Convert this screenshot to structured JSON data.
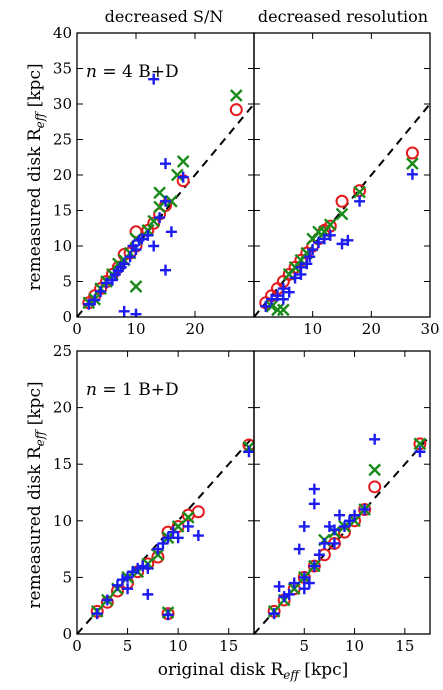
{
  "figure": {
    "column_titles": [
      "decreased S/N",
      "decreased resolution"
    ],
    "ylabel": "remeasured disk R",
    "ylabel_sub": "eff",
    "ylabel_unit": " [kpc]",
    "xlabel": "original disk R",
    "xlabel_sub": "eff",
    "xlabel_unit": " [kpc]"
  },
  "colors": {
    "circle": "#e41a1c",
    "cross": "#1a8a1a",
    "plus": "#1c1cf0",
    "ref_line": "#000000"
  },
  "chart_data": [
    {
      "type": "scatter",
      "row": 0,
      "col": 0,
      "panel_label": "n = 4 B+D",
      "xlim": [
        0,
        30
      ],
      "ylim": [
        0,
        40
      ],
      "xticks": [
        0,
        10,
        20
      ],
      "yticks": [
        0,
        5,
        10,
        15,
        20,
        25,
        30,
        35,
        40
      ],
      "reference_line": "y = x",
      "series": [
        {
          "marker": "circle",
          "points": [
            [
              2,
              2
            ],
            [
              3,
              3
            ],
            [
              4,
              4
            ],
            [
              5,
              5
            ],
            [
              6,
              6
            ],
            [
              7,
              7
            ],
            [
              8,
              8.8
            ],
            [
              9,
              9
            ],
            [
              10,
              10
            ],
            [
              10,
              12
            ],
            [
              12,
              12.2
            ],
            [
              13,
              13.2
            ],
            [
              14,
              14.5
            ],
            [
              15,
              15.7
            ],
            [
              18,
              19.2
            ],
            [
              27,
              29.2
            ]
          ]
        },
        {
          "marker": "cross",
          "points": [
            [
              2,
              2
            ],
            [
              3,
              2.5
            ],
            [
              4,
              4
            ],
            [
              5,
              5
            ],
            [
              6,
              6
            ],
            [
              7,
              7.5
            ],
            [
              8,
              8
            ],
            [
              9,
              9
            ],
            [
              10,
              11
            ],
            [
              10,
              4.3
            ],
            [
              12,
              12.2
            ],
            [
              13,
              13.5
            ],
            [
              14,
              15.5
            ],
            [
              14,
              17.5
            ],
            [
              16,
              16.3
            ],
            [
              17,
              20
            ],
            [
              18,
              21.9
            ],
            [
              27,
              31.2
            ]
          ]
        },
        {
          "marker": "plus",
          "points": [
            [
              2,
              1.8
            ],
            [
              3,
              2.4
            ],
            [
              4,
              3.6
            ],
            [
              5,
              4.8
            ],
            [
              6,
              5.2
            ],
            [
              6.5,
              6
            ],
            [
              7,
              6.5
            ],
            [
              7.5,
              7
            ],
            [
              8,
              0.8
            ],
            [
              8,
              7.5
            ],
            [
              9,
              8.5
            ],
            [
              9.5,
              10
            ],
            [
              10,
              0.4
            ],
            [
              10,
              9.5
            ],
            [
              10.5,
              10.8
            ],
            [
              11,
              11
            ],
            [
              12,
              11.5
            ],
            [
              13,
              33.5
            ],
            [
              13,
              10
            ],
            [
              14,
              14
            ],
            [
              15,
              21.6
            ],
            [
              15,
              16.3
            ],
            [
              15,
              6.6
            ],
            [
              16,
              12
            ],
            [
              18,
              19.7
            ]
          ]
        }
      ]
    },
    {
      "type": "scatter",
      "row": 0,
      "col": 1,
      "panel_label": "",
      "xlim": [
        0,
        30
      ],
      "ylim": [
        0,
        40
      ],
      "xticks": [
        10,
        20,
        30
      ],
      "yticks": [
        0,
        5,
        10,
        15,
        20,
        25,
        30,
        35,
        40
      ],
      "reference_line": "y = x",
      "series": [
        {
          "marker": "circle",
          "points": [
            [
              2,
              2
            ],
            [
              3,
              3
            ],
            [
              4,
              4
            ],
            [
              5,
              5
            ],
            [
              6,
              6
            ],
            [
              7,
              7
            ],
            [
              8,
              8
            ],
            [
              9,
              9
            ],
            [
              10,
              10
            ],
            [
              11,
              11
            ],
            [
              12,
              12.2
            ],
            [
              13,
              12.8
            ],
            [
              15,
              16.3
            ],
            [
              18,
              17.8
            ],
            [
              27,
              23.1
            ]
          ]
        },
        {
          "marker": "cross",
          "points": [
            [
              3,
              1.5
            ],
            [
              4,
              1
            ],
            [
              5,
              1
            ],
            [
              6,
              6
            ],
            [
              7,
              7
            ],
            [
              8,
              8
            ],
            [
              9,
              9
            ],
            [
              10,
              11
            ],
            [
              11,
              12
            ],
            [
              12,
              12
            ],
            [
              13,
              13
            ],
            [
              15,
              14.5
            ],
            [
              18,
              17.6
            ],
            [
              27,
              21.6
            ]
          ]
        },
        {
          "marker": "plus",
          "points": [
            [
              2,
              1.5
            ],
            [
              3,
              2.5
            ],
            [
              4,
              3
            ],
            [
              5,
              2.5
            ],
            [
              5,
              4
            ],
            [
              6,
              3.5
            ],
            [
              7,
              5.5
            ],
            [
              8,
              6
            ],
            [
              8,
              7
            ],
            [
              9,
              7.5
            ],
            [
              9.5,
              8.5
            ],
            [
              10,
              9.5
            ],
            [
              11,
              10.5
            ],
            [
              12,
              11
            ],
            [
              13,
              11.5
            ],
            [
              15,
              10.3
            ],
            [
              16,
              10.8
            ],
            [
              18,
              16.3
            ],
            [
              27,
              20.1
            ]
          ]
        }
      ]
    },
    {
      "type": "scatter",
      "row": 1,
      "col": 0,
      "panel_label": "n = 1 B+D",
      "xlim": [
        0,
        17.5
      ],
      "ylim": [
        0,
        25
      ],
      "xticks": [
        0,
        5,
        10,
        15
      ],
      "yticks": [
        0,
        5,
        10,
        15,
        20,
        25
      ],
      "reference_line": "y = x",
      "series": [
        {
          "marker": "circle",
          "points": [
            [
              2,
              2
            ],
            [
              3,
              2.8
            ],
            [
              4,
              3.8
            ],
            [
              5,
              4.5
            ],
            [
              6,
              5.5
            ],
            [
              7,
              6.2
            ],
            [
              8,
              6.8
            ],
            [
              9,
              9
            ],
            [
              10,
              9.5
            ],
            [
              11,
              10.5
            ],
            [
              12,
              10.8
            ],
            [
              9,
              1.8
            ],
            [
              17,
              16.7
            ]
          ]
        },
        {
          "marker": "cross",
          "points": [
            [
              2,
              2
            ],
            [
              3,
              3
            ],
            [
              4,
              4
            ],
            [
              5,
              5
            ],
            [
              6,
              5.5
            ],
            [
              7,
              6.2
            ],
            [
              8,
              7
            ],
            [
              9,
              8.5
            ],
            [
              10,
              9.5
            ],
            [
              11,
              10.3
            ],
            [
              9,
              1.9
            ],
            [
              17,
              16.5
            ]
          ]
        },
        {
          "marker": "plus",
          "points": [
            [
              2,
              1.8
            ],
            [
              3,
              3
            ],
            [
              4,
              4.3
            ],
            [
              4.5,
              4.8
            ],
            [
              5,
              5
            ],
            [
              5,
              4
            ],
            [
              5.5,
              5.5
            ],
            [
              6,
              5.8
            ],
            [
              6.5,
              6
            ],
            [
              7,
              3.5
            ],
            [
              7,
              5.8
            ],
            [
              8,
              7.5
            ],
            [
              8.5,
              8
            ],
            [
              9,
              8.5
            ],
            [
              9,
              1.7
            ],
            [
              9.5,
              9
            ],
            [
              10,
              8.5
            ],
            [
              11,
              9.5
            ],
            [
              12,
              8.7
            ],
            [
              17,
              16.1
            ]
          ]
        }
      ]
    },
    {
      "type": "scatter",
      "row": 1,
      "col": 1,
      "panel_label": "",
      "xlim": [
        0,
        17.5
      ],
      "ylim": [
        0,
        25
      ],
      "xticks": [
        5,
        10,
        15
      ],
      "yticks": [
        0,
        5,
        10,
        15,
        20,
        25
      ],
      "reference_line": "y = x",
      "series": [
        {
          "marker": "circle",
          "points": [
            [
              2,
              2
            ],
            [
              3,
              3
            ],
            [
              4,
              4
            ],
            [
              5,
              5
            ],
            [
              6,
              6
            ],
            [
              7,
              7
            ],
            [
              8,
              8
            ],
            [
              9,
              9
            ],
            [
              10,
              10
            ],
            [
              11,
              11
            ],
            [
              12,
              13
            ],
            [
              16.5,
              16.8
            ]
          ]
        },
        {
          "marker": "cross",
          "points": [
            [
              2,
              2
            ],
            [
              3,
              3
            ],
            [
              4,
              4
            ],
            [
              5,
              5
            ],
            [
              6,
              6
            ],
            [
              7,
              8.3
            ],
            [
              8,
              9
            ],
            [
              9,
              9.5
            ],
            [
              10,
              10
            ],
            [
              11,
              11
            ],
            [
              12,
              14.5
            ],
            [
              16.5,
              16.8
            ]
          ]
        },
        {
          "marker": "plus",
          "points": [
            [
              2,
              1.8
            ],
            [
              2.5,
              4.2
            ],
            [
              3,
              3.3
            ],
            [
              3.5,
              3.5
            ],
            [
              4,
              4.5
            ],
            [
              4.5,
              7.5
            ],
            [
              5,
              5
            ],
            [
              5,
              9.5
            ],
            [
              5,
              4
            ],
            [
              5.5,
              4.5
            ],
            [
              6,
              12.8
            ],
            [
              6,
              11.5
            ],
            [
              6,
              6
            ],
            [
              6.5,
              7
            ],
            [
              7,
              8
            ],
            [
              7.5,
              9.5
            ],
            [
              8,
              8
            ],
            [
              8,
              9.2
            ],
            [
              8.5,
              10.5
            ],
            [
              9,
              9.5
            ],
            [
              9.5,
              10
            ],
            [
              10,
              10.5
            ],
            [
              11,
              11
            ],
            [
              12,
              17.2
            ],
            [
              16.5,
              16.1
            ]
          ]
        }
      ]
    }
  ]
}
